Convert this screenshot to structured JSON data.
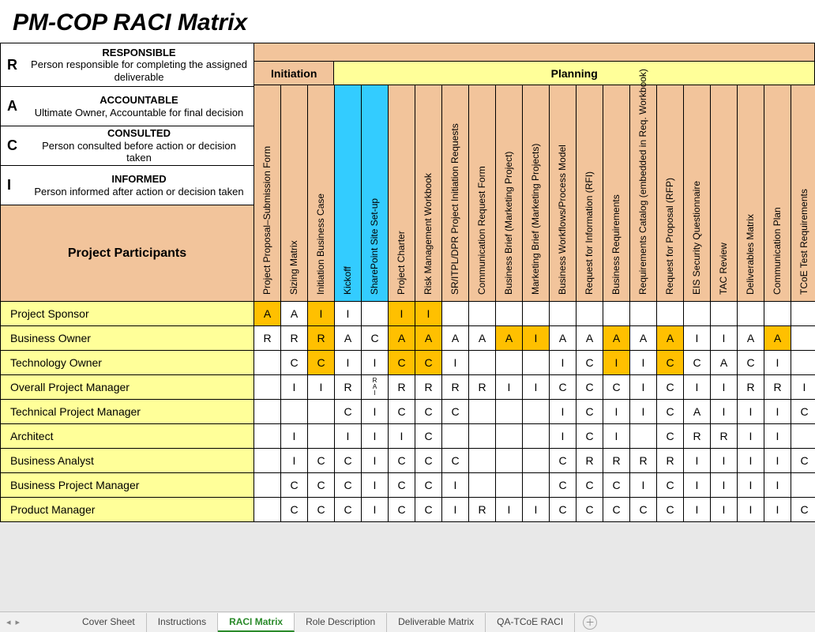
{
  "title": "PM-COP RACI  Matrix",
  "colors": {
    "peach": "#f2c49b",
    "yellowHdr": "#ffff99",
    "yellowRow": "#ffff99",
    "blue": "#33ccff",
    "orange": "#ffc000",
    "white": "#ffffff"
  },
  "legend": [
    {
      "letter": "R",
      "title": "RESPONSIBLE",
      "desc": "Person responsible for completing the assigned deliverable"
    },
    {
      "letter": "A",
      "title": "ACCOUNTABLE",
      "desc": "Ultimate Owner, Accountable for final decision"
    },
    {
      "letter": "C",
      "title": "CONSULTED",
      "desc": "Person consulted before action or decision taken"
    },
    {
      "letter": "I",
      "title": "INFORMED",
      "desc": "Person informed after action or decision taken"
    }
  ],
  "participants_header": "Project Participants",
  "phases": [
    {
      "label": "Initiation",
      "span": 3,
      "bg": "peach"
    },
    {
      "label": "Planning",
      "span": 18,
      "bg": "yellowHdr"
    }
  ],
  "columns": [
    {
      "label": "Project Proposal–Submission Form",
      "bg": "peach"
    },
    {
      "label": "Sizing Matrix",
      "bg": "peach"
    },
    {
      "label": "Initiation Business Case",
      "bg": "peach"
    },
    {
      "label": "Kickoff",
      "bg": "blue"
    },
    {
      "label": "SharePoint Site Set-up",
      "bg": "blue"
    },
    {
      "label": "Project Charter",
      "bg": "peach"
    },
    {
      "label": "Risk Management Workbook",
      "bg": "peach"
    },
    {
      "label": "SR/ITPL/DPR  Project Initiation Requests",
      "bg": "peach"
    },
    {
      "label": "Communication Request Form",
      "bg": "peach"
    },
    {
      "label": "Business Brief  (Marketing Project)",
      "bg": "peach"
    },
    {
      "label": "Marketing Brief  (Marketing Projects)",
      "bg": "peach"
    },
    {
      "label": "Business Workflows/Process Model",
      "bg": "peach"
    },
    {
      "label": "Request for Information  (RFI)",
      "bg": "peach"
    },
    {
      "label": "Business Requirements",
      "bg": "peach"
    },
    {
      "label": "Requirements Catalog (embedded in Req. Workbook)",
      "bg": "peach"
    },
    {
      "label": "Request for Proposal  (RFP)",
      "bg": "peach"
    },
    {
      "label": "EIS Security Questionnaire",
      "bg": "peach"
    },
    {
      "label": "TAC Review",
      "bg": "peach"
    },
    {
      "label": "Deliverables Matrix",
      "bg": "peach"
    },
    {
      "label": "Communication Plan",
      "bg": "peach"
    },
    {
      "label": "TCoE Test Requirements",
      "bg": "peach"
    }
  ],
  "rows": [
    {
      "label": "Project Sponsor",
      "cells": [
        {
          "v": "A",
          "hl": true
        },
        {
          "v": "A"
        },
        {
          "v": "I",
          "hl": true
        },
        {
          "v": "I"
        },
        {
          "v": ""
        },
        {
          "v": "I",
          "hl": true
        },
        {
          "v": "I",
          "hl": true
        },
        {
          "v": ""
        },
        {
          "v": ""
        },
        {
          "v": ""
        },
        {
          "v": ""
        },
        {
          "v": ""
        },
        {
          "v": ""
        },
        {
          "v": ""
        },
        {
          "v": ""
        },
        {
          "v": ""
        },
        {
          "v": ""
        },
        {
          "v": ""
        },
        {
          "v": ""
        },
        {
          "v": ""
        },
        {
          "v": ""
        }
      ]
    },
    {
      "label": "Business Owner",
      "cells": [
        {
          "v": "R"
        },
        {
          "v": "R"
        },
        {
          "v": "R",
          "hl": true
        },
        {
          "v": "A"
        },
        {
          "v": "C"
        },
        {
          "v": "A",
          "hl": true
        },
        {
          "v": "A",
          "hl": true
        },
        {
          "v": "A"
        },
        {
          "v": "A"
        },
        {
          "v": "A",
          "hl": true
        },
        {
          "v": "I",
          "hl": true
        },
        {
          "v": "A"
        },
        {
          "v": "A"
        },
        {
          "v": "A",
          "hl": true
        },
        {
          "v": "A"
        },
        {
          "v": "A",
          "hl": true
        },
        {
          "v": "I"
        },
        {
          "v": "I"
        },
        {
          "v": "A"
        },
        {
          "v": "A",
          "hl": true
        },
        {
          "v": ""
        }
      ]
    },
    {
      "label": "Technology Owner",
      "cells": [
        {
          "v": ""
        },
        {
          "v": "C"
        },
        {
          "v": "C",
          "hl": true
        },
        {
          "v": "I"
        },
        {
          "v": "I"
        },
        {
          "v": "C",
          "hl": true
        },
        {
          "v": "C",
          "hl": true
        },
        {
          "v": "I"
        },
        {
          "v": ""
        },
        {
          "v": ""
        },
        {
          "v": ""
        },
        {
          "v": "I"
        },
        {
          "v": "C"
        },
        {
          "v": "I",
          "hl": true
        },
        {
          "v": "I"
        },
        {
          "v": "C",
          "hl": true
        },
        {
          "v": "C"
        },
        {
          "v": "A"
        },
        {
          "v": "C"
        },
        {
          "v": "I"
        },
        {
          "v": ""
        }
      ]
    },
    {
      "label": "Overall Project Manager",
      "cells": [
        {
          "v": ""
        },
        {
          "v": "I"
        },
        {
          "v": "I"
        },
        {
          "v": "R"
        },
        {
          "v": "R\nA\nI",
          "multi": true
        },
        {
          "v": "R"
        },
        {
          "v": "R"
        },
        {
          "v": "R"
        },
        {
          "v": "R"
        },
        {
          "v": "I"
        },
        {
          "v": "I"
        },
        {
          "v": "C"
        },
        {
          "v": "C"
        },
        {
          "v": "C"
        },
        {
          "v": "I"
        },
        {
          "v": "C"
        },
        {
          "v": "I"
        },
        {
          "v": "I"
        },
        {
          "v": "R"
        },
        {
          "v": "R"
        },
        {
          "v": "I"
        }
      ]
    },
    {
      "label": "Technical Project Manager",
      "cells": [
        {
          "v": ""
        },
        {
          "v": ""
        },
        {
          "v": ""
        },
        {
          "v": "C"
        },
        {
          "v": "I"
        },
        {
          "v": "C"
        },
        {
          "v": "C"
        },
        {
          "v": "C"
        },
        {
          "v": ""
        },
        {
          "v": ""
        },
        {
          "v": ""
        },
        {
          "v": "I"
        },
        {
          "v": "C"
        },
        {
          "v": "I"
        },
        {
          "v": "I"
        },
        {
          "v": "C"
        },
        {
          "v": "A"
        },
        {
          "v": "I"
        },
        {
          "v": "I"
        },
        {
          "v": "I"
        },
        {
          "v": "C"
        }
      ]
    },
    {
      "label": "Architect",
      "cells": [
        {
          "v": ""
        },
        {
          "v": "I"
        },
        {
          "v": ""
        },
        {
          "v": "I"
        },
        {
          "v": "I"
        },
        {
          "v": "I"
        },
        {
          "v": "C"
        },
        {
          "v": ""
        },
        {
          "v": ""
        },
        {
          "v": ""
        },
        {
          "v": ""
        },
        {
          "v": "I"
        },
        {
          "v": "C"
        },
        {
          "v": "I"
        },
        {
          "v": ""
        },
        {
          "v": "C"
        },
        {
          "v": "R"
        },
        {
          "v": "R"
        },
        {
          "v": "I"
        },
        {
          "v": "I"
        },
        {
          "v": ""
        }
      ]
    },
    {
      "label": "Business Analyst",
      "cells": [
        {
          "v": ""
        },
        {
          "v": "I"
        },
        {
          "v": "C"
        },
        {
          "v": "C"
        },
        {
          "v": "I"
        },
        {
          "v": "C"
        },
        {
          "v": "C"
        },
        {
          "v": "C"
        },
        {
          "v": ""
        },
        {
          "v": ""
        },
        {
          "v": ""
        },
        {
          "v": "C"
        },
        {
          "v": "R"
        },
        {
          "v": "R"
        },
        {
          "v": "R"
        },
        {
          "v": "R"
        },
        {
          "v": "I"
        },
        {
          "v": "I"
        },
        {
          "v": "I"
        },
        {
          "v": "I"
        },
        {
          "v": "C"
        }
      ]
    },
    {
      "label": "Business Project Manager",
      "cells": [
        {
          "v": ""
        },
        {
          "v": "C"
        },
        {
          "v": "C"
        },
        {
          "v": "C"
        },
        {
          "v": "I"
        },
        {
          "v": "C"
        },
        {
          "v": "C"
        },
        {
          "v": "I"
        },
        {
          "v": ""
        },
        {
          "v": ""
        },
        {
          "v": ""
        },
        {
          "v": "C"
        },
        {
          "v": "C"
        },
        {
          "v": "C"
        },
        {
          "v": "I"
        },
        {
          "v": "C"
        },
        {
          "v": "I"
        },
        {
          "v": "I"
        },
        {
          "v": "I"
        },
        {
          "v": "I"
        },
        {
          "v": ""
        }
      ]
    },
    {
      "label": "Product Manager",
      "cells": [
        {
          "v": ""
        },
        {
          "v": "C"
        },
        {
          "v": "C"
        },
        {
          "v": "C"
        },
        {
          "v": "I"
        },
        {
          "v": "C"
        },
        {
          "v": "C"
        },
        {
          "v": "I"
        },
        {
          "v": "R"
        },
        {
          "v": "I"
        },
        {
          "v": "I"
        },
        {
          "v": "C"
        },
        {
          "v": "C"
        },
        {
          "v": "C"
        },
        {
          "v": "C"
        },
        {
          "v": "C"
        },
        {
          "v": "I"
        },
        {
          "v": "I"
        },
        {
          "v": "I"
        },
        {
          "v": "I"
        },
        {
          "v": "C"
        }
      ]
    }
  ],
  "tabs": [
    {
      "label": "Cover Sheet",
      "active": false
    },
    {
      "label": "Instructions",
      "active": false
    },
    {
      "label": "RACI Matrix",
      "active": true
    },
    {
      "label": "Role Description",
      "active": false
    },
    {
      "label": "Deliverable Matrix",
      "active": false
    },
    {
      "label": "QA-TCoE RACI",
      "active": false
    }
  ]
}
